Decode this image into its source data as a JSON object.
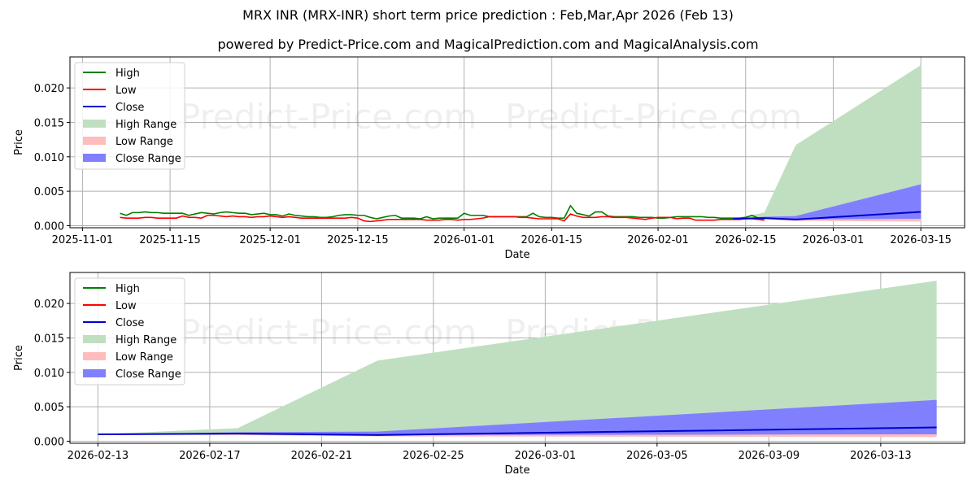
{
  "title": "MRX INR (MRX-INR) short term price prediction : Feb,Mar,Apr 2026 (Feb 13)",
  "subtitle": "powered by Predict-Price.com and MagicalPrediction.com and MagicalAnalysis.com",
  "watermark": "Predict-Price.com",
  "colors": {
    "high": "#008000",
    "low": "#ff0000",
    "close": "#0000cc",
    "high_range": "#c0dfc0",
    "low_range": "#ffbcbc",
    "close_range": "#8080ff",
    "grid": "#b0b0b0"
  },
  "legend": [
    "High",
    "Low",
    "Close",
    "High Range",
    "Low Range",
    "Close Range"
  ],
  "chart_data": [
    {
      "type": "line",
      "title": "",
      "xlabel": "Date",
      "ylabel": "Price",
      "ylim": [
        -0.0003,
        0.0245
      ],
      "xlim": [
        "2025-10-30",
        "2026-03-22"
      ],
      "grid": true,
      "legend_position": "upper left",
      "x_ticks": [
        "2025-11-01",
        "2025-11-15",
        "2025-12-01",
        "2025-12-15",
        "2026-01-01",
        "2026-01-15",
        "2026-02-01",
        "2026-02-15",
        "2026-03-01",
        "2026-03-15"
      ],
      "y_ticks": [
        "0.000",
        "0.005",
        "0.010",
        "0.015",
        "0.020"
      ],
      "history": {
        "start": "2025-11-07",
        "step_days": 1,
        "high": [
          0.0018,
          0.0015,
          0.0019,
          0.0019,
          0.002,
          0.0019,
          0.0019,
          0.0018,
          0.0018,
          0.0018,
          0.0018,
          0.0015,
          0.0017,
          0.0019,
          0.0018,
          0.0017,
          0.0019,
          0.002,
          0.0019,
          0.0018,
          0.0018,
          0.0016,
          0.0017,
          0.0018,
          0.0016,
          0.0016,
          0.0014,
          0.0017,
          0.0015,
          0.0014,
          0.0013,
          0.0013,
          0.0012,
          0.0012,
          0.0013,
          0.0015,
          0.0016,
          0.0016,
          0.0015,
          0.0015,
          0.0012,
          0.001,
          0.0012,
          0.0014,
          0.0015,
          0.0011,
          0.0011,
          0.0011,
          0.001,
          0.0013,
          0.001,
          0.0011,
          0.0011,
          0.0011,
          0.0011,
          0.0018,
          0.0015,
          0.0015,
          0.0015,
          0.0013,
          0.0013,
          0.0013,
          0.0013,
          0.0013,
          0.0013,
          0.0013,
          0.0018,
          0.0013,
          0.0012,
          0.0012,
          0.0011,
          0.0011,
          0.0029,
          0.0018,
          0.0016,
          0.0014,
          0.002,
          0.002,
          0.0014,
          0.0013,
          0.0013,
          0.0013,
          0.0013,
          0.0012,
          0.0012,
          0.0012,
          0.0011,
          0.0011,
          0.0012,
          0.0013,
          0.0013,
          0.0013,
          0.0013,
          0.0013,
          0.0012,
          0.0012,
          0.0011,
          0.0011,
          0.0011,
          0.0011,
          0.0012,
          0.0015,
          0.0011,
          0.001
        ],
        "low": [
          0.0012,
          0.0011,
          0.0011,
          0.0011,
          0.0012,
          0.0012,
          0.0011,
          0.0011,
          0.0011,
          0.0011,
          0.0014,
          0.0012,
          0.0012,
          0.0011,
          0.0015,
          0.0015,
          0.0014,
          0.0013,
          0.0014,
          0.0013,
          0.0013,
          0.0012,
          0.0013,
          0.0013,
          0.0014,
          0.0013,
          0.0012,
          0.0013,
          0.0012,
          0.0011,
          0.0011,
          0.0011,
          0.0011,
          0.0011,
          0.0011,
          0.0011,
          0.0011,
          0.0012,
          0.0011,
          0.0007,
          0.0006,
          0.0007,
          0.0008,
          0.0009,
          0.0009,
          0.0009,
          0.0009,
          0.0009,
          0.0009,
          0.0008,
          0.0008,
          0.0008,
          0.0009,
          0.0009,
          0.0008,
          0.0009,
          0.0009,
          0.001,
          0.0011,
          0.0013,
          0.0013,
          0.0013,
          0.0013,
          0.0013,
          0.0012,
          0.0012,
          0.0011,
          0.001,
          0.001,
          0.001,
          0.001,
          0.0007,
          0.0017,
          0.0014,
          0.0012,
          0.0012,
          0.0012,
          0.0013,
          0.0013,
          0.0012,
          0.0012,
          0.0012,
          0.0011,
          0.001,
          0.0009,
          0.0011,
          0.0012,
          0.0012,
          0.0012,
          0.001,
          0.0011,
          0.0011,
          0.0008,
          0.0008,
          0.0008,
          0.0008,
          0.0009,
          0.0009,
          0.0009,
          0.0009,
          0.001,
          0.001,
          0.0009,
          0.0008
        ]
      },
      "forecast": {
        "dates": [
          "2026-02-13",
          "2026-02-18",
          "2026-02-23",
          "2026-03-15"
        ],
        "close": [
          0.001,
          0.0011,
          0.0009,
          0.002
        ],
        "high_range_upper": [
          0.001,
          0.0019,
          0.0117,
          0.0233
        ],
        "high_range_lower": [
          0.001,
          0.001,
          0.001,
          0.001
        ],
        "close_range_upper": [
          0.001,
          0.0013,
          0.0014,
          0.006
        ],
        "close_range_lower": [
          0.001,
          0.001,
          0.0009,
          0.001
        ],
        "low_range_upper": [
          0.001,
          0.001,
          0.0009,
          0.0019
        ],
        "low_range_lower": [
          0.001,
          0.0009,
          0.0007,
          0.0006
        ]
      }
    },
    {
      "type": "area",
      "title": "",
      "xlabel": "Date",
      "ylabel": "Price",
      "ylim": [
        -0.0003,
        0.0245
      ],
      "xlim": [
        "2026-02-12",
        "2026-03-16"
      ],
      "grid": true,
      "legend_position": "upper left",
      "x_ticks": [
        "2026-02-13",
        "2026-02-17",
        "2026-02-21",
        "2026-02-25",
        "2026-03-01",
        "2026-03-05",
        "2026-03-09",
        "2026-03-13"
      ],
      "y_ticks": [
        "0.000",
        "0.005",
        "0.010",
        "0.015",
        "0.020"
      ],
      "forecast": {
        "dates": [
          "2026-02-13",
          "2026-02-18",
          "2026-02-23",
          "2026-03-15"
        ],
        "close": [
          0.001,
          0.0011,
          0.0009,
          0.002
        ],
        "high_range_upper": [
          0.001,
          0.0019,
          0.0117,
          0.0233
        ],
        "high_range_lower": [
          0.001,
          0.001,
          0.001,
          0.001
        ],
        "close_range_upper": [
          0.001,
          0.0013,
          0.0014,
          0.006
        ],
        "close_range_lower": [
          0.001,
          0.001,
          0.0009,
          0.001
        ],
        "low_range_upper": [
          0.001,
          0.001,
          0.0009,
          0.0019
        ],
        "low_range_lower": [
          0.001,
          0.0009,
          0.0007,
          0.0006
        ]
      }
    }
  ]
}
